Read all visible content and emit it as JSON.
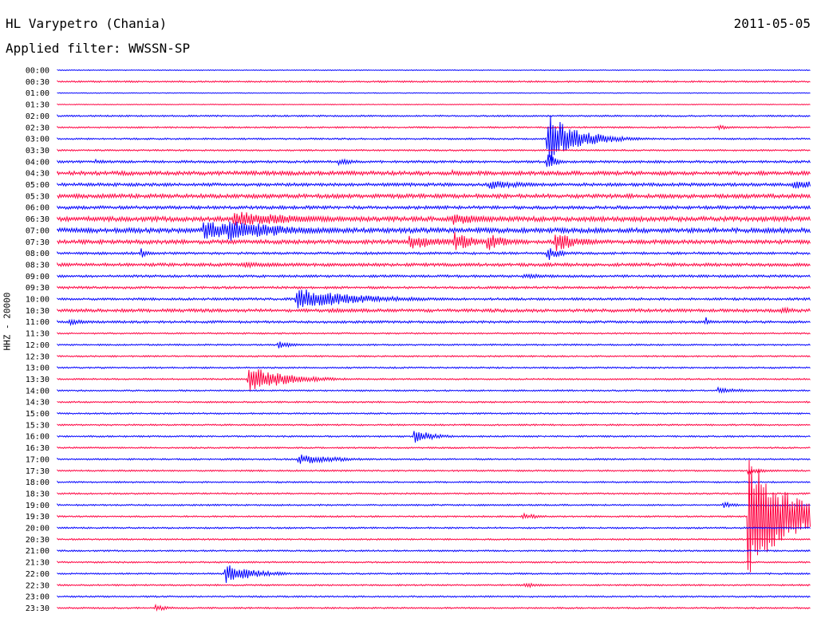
{
  "header": {
    "station": "HL Varypetro (Chania)",
    "date": "2011-05-05",
    "filter": "Applied filter: WWSSN-SP",
    "channel": "HHZ - 20000"
  },
  "chart_data": {
    "type": "line",
    "title": "HL Varypetro (Chania)",
    "subtitle": "Applied filter: WWSSN-SP",
    "date": "2011-05-05",
    "ylabel": "HHZ - 20000",
    "trace_colors": [
      "#0000ff",
      "#ff0040"
    ],
    "rows": [
      "00:00",
      "00:30",
      "01:00",
      "01:30",
      "02:00",
      "02:30",
      "03:00",
      "03:30",
      "04:00",
      "04:30",
      "05:00",
      "05:30",
      "06:00",
      "06:30",
      "07:00",
      "07:30",
      "08:00",
      "08:30",
      "09:00",
      "09:30",
      "10:00",
      "10:30",
      "11:00",
      "11:30",
      "12:00",
      "12:30",
      "13:00",
      "13:30",
      "14:00",
      "14:30",
      "15:00",
      "15:30",
      "16:00",
      "16:30",
      "17:00",
      "17:30",
      "18:00",
      "18:30",
      "19:00",
      "19:30",
      "20:00",
      "20:30",
      "21:00",
      "21:30",
      "22:00",
      "22:30",
      "23:00",
      "23:30"
    ],
    "row_duration_min": 30,
    "noise": [
      0.5,
      1,
      0.5,
      0.5,
      1,
      1,
      1,
      1,
      1.5,
      2.5,
      2,
      2.5,
      2,
      3,
      3,
      2.5,
      1.5,
      2,
      1.5,
      1.5,
      1.5,
      2,
      1.5,
      1,
      1,
      1,
      1,
      1,
      1,
      1,
      1,
      1,
      1,
      1,
      1,
      1,
      1,
      1,
      1,
      1,
      1,
      1,
      1,
      1,
      1,
      1,
      1,
      1
    ],
    "events": [
      {
        "row": 6,
        "minute": 19.5,
        "amp": 35,
        "duration_min": 1.2
      },
      {
        "row": 5,
        "minute": 26.3,
        "amp": 3,
        "duration_min": 0.6
      },
      {
        "row": 8,
        "minute": 1.5,
        "amp": 3,
        "duration_min": 0.6
      },
      {
        "row": 8,
        "minute": 11.2,
        "amp": 4,
        "duration_min": 0.8
      },
      {
        "row": 8,
        "minute": 19.5,
        "amp": 14,
        "duration_min": 0.3
      },
      {
        "row": 9,
        "minute": 15.7,
        "amp": 4,
        "duration_min": 0.6
      },
      {
        "row": 10,
        "minute": 17.2,
        "amp": 6,
        "duration_min": 1.5
      },
      {
        "row": 10,
        "minute": 29.3,
        "amp": 6,
        "duration_min": 1.5
      },
      {
        "row": 13,
        "minute": 7.0,
        "amp": 10,
        "duration_min": 3.0
      },
      {
        "row": 13,
        "minute": 15.7,
        "amp": 8,
        "duration_min": 1.5
      },
      {
        "row": 14,
        "minute": 5.8,
        "amp": 12,
        "duration_min": 2.5
      },
      {
        "row": 14,
        "minute": 6.8,
        "amp": 14,
        "duration_min": 2.5
      },
      {
        "row": 15,
        "minute": 14.0,
        "amp": 10,
        "duration_min": 1.5
      },
      {
        "row": 15,
        "minute": 15.8,
        "amp": 14,
        "duration_min": 0.8
      },
      {
        "row": 15,
        "minute": 17.1,
        "amp": 12,
        "duration_min": 0.8
      },
      {
        "row": 15,
        "minute": 19.8,
        "amp": 14,
        "duration_min": 1.0
      },
      {
        "row": 16,
        "minute": 3.3,
        "amp": 7,
        "duration_min": 0.3
      },
      {
        "row": 16,
        "minute": 19.5,
        "amp": 10,
        "duration_min": 0.5
      },
      {
        "row": 17,
        "minute": 7.3,
        "amp": 4,
        "duration_min": 2.0
      },
      {
        "row": 18,
        "minute": 18.5,
        "amp": 3,
        "duration_min": 2.0
      },
      {
        "row": 20,
        "minute": 9.5,
        "amp": 14,
        "duration_min": 2.5
      },
      {
        "row": 21,
        "minute": 10.8,
        "amp": 3,
        "duration_min": 2.0
      },
      {
        "row": 21,
        "minute": 28.8,
        "amp": 5,
        "duration_min": 0.6
      },
      {
        "row": 22,
        "minute": 0.5,
        "amp": 5,
        "duration_min": 0.6
      },
      {
        "row": 22,
        "minute": 25.8,
        "amp": 7,
        "duration_min": 0.2
      },
      {
        "row": 24,
        "minute": 8.8,
        "amp": 5,
        "duration_min": 0.6
      },
      {
        "row": 27,
        "minute": 7.6,
        "amp": 17,
        "duration_min": 1.5
      },
      {
        "row": 28,
        "minute": 26.3,
        "amp": 4,
        "duration_min": 1.0
      },
      {
        "row": 32,
        "minute": 14.2,
        "amp": 9,
        "duration_min": 0.8
      },
      {
        "row": 34,
        "minute": 9.6,
        "amp": 7,
        "duration_min": 1.5
      },
      {
        "row": 35,
        "minute": 27.5,
        "amp": 4,
        "duration_min": 0.8
      },
      {
        "row": 38,
        "minute": 26.5,
        "amp": 4,
        "duration_min": 0.6
      },
      {
        "row": 39,
        "minute": 27.5,
        "amp": 85,
        "duration_min": 1.5
      },
      {
        "row": 39,
        "minute": 18.5,
        "amp": 4,
        "duration_min": 0.8
      },
      {
        "row": 44,
        "minute": 6.7,
        "amp": 12,
        "duration_min": 1.2
      },
      {
        "row": 45,
        "minute": 18.6,
        "amp": 4,
        "duration_min": 0.6
      },
      {
        "row": 47,
        "minute": 3.9,
        "amp": 4,
        "duration_min": 0.6
      }
    ]
  }
}
